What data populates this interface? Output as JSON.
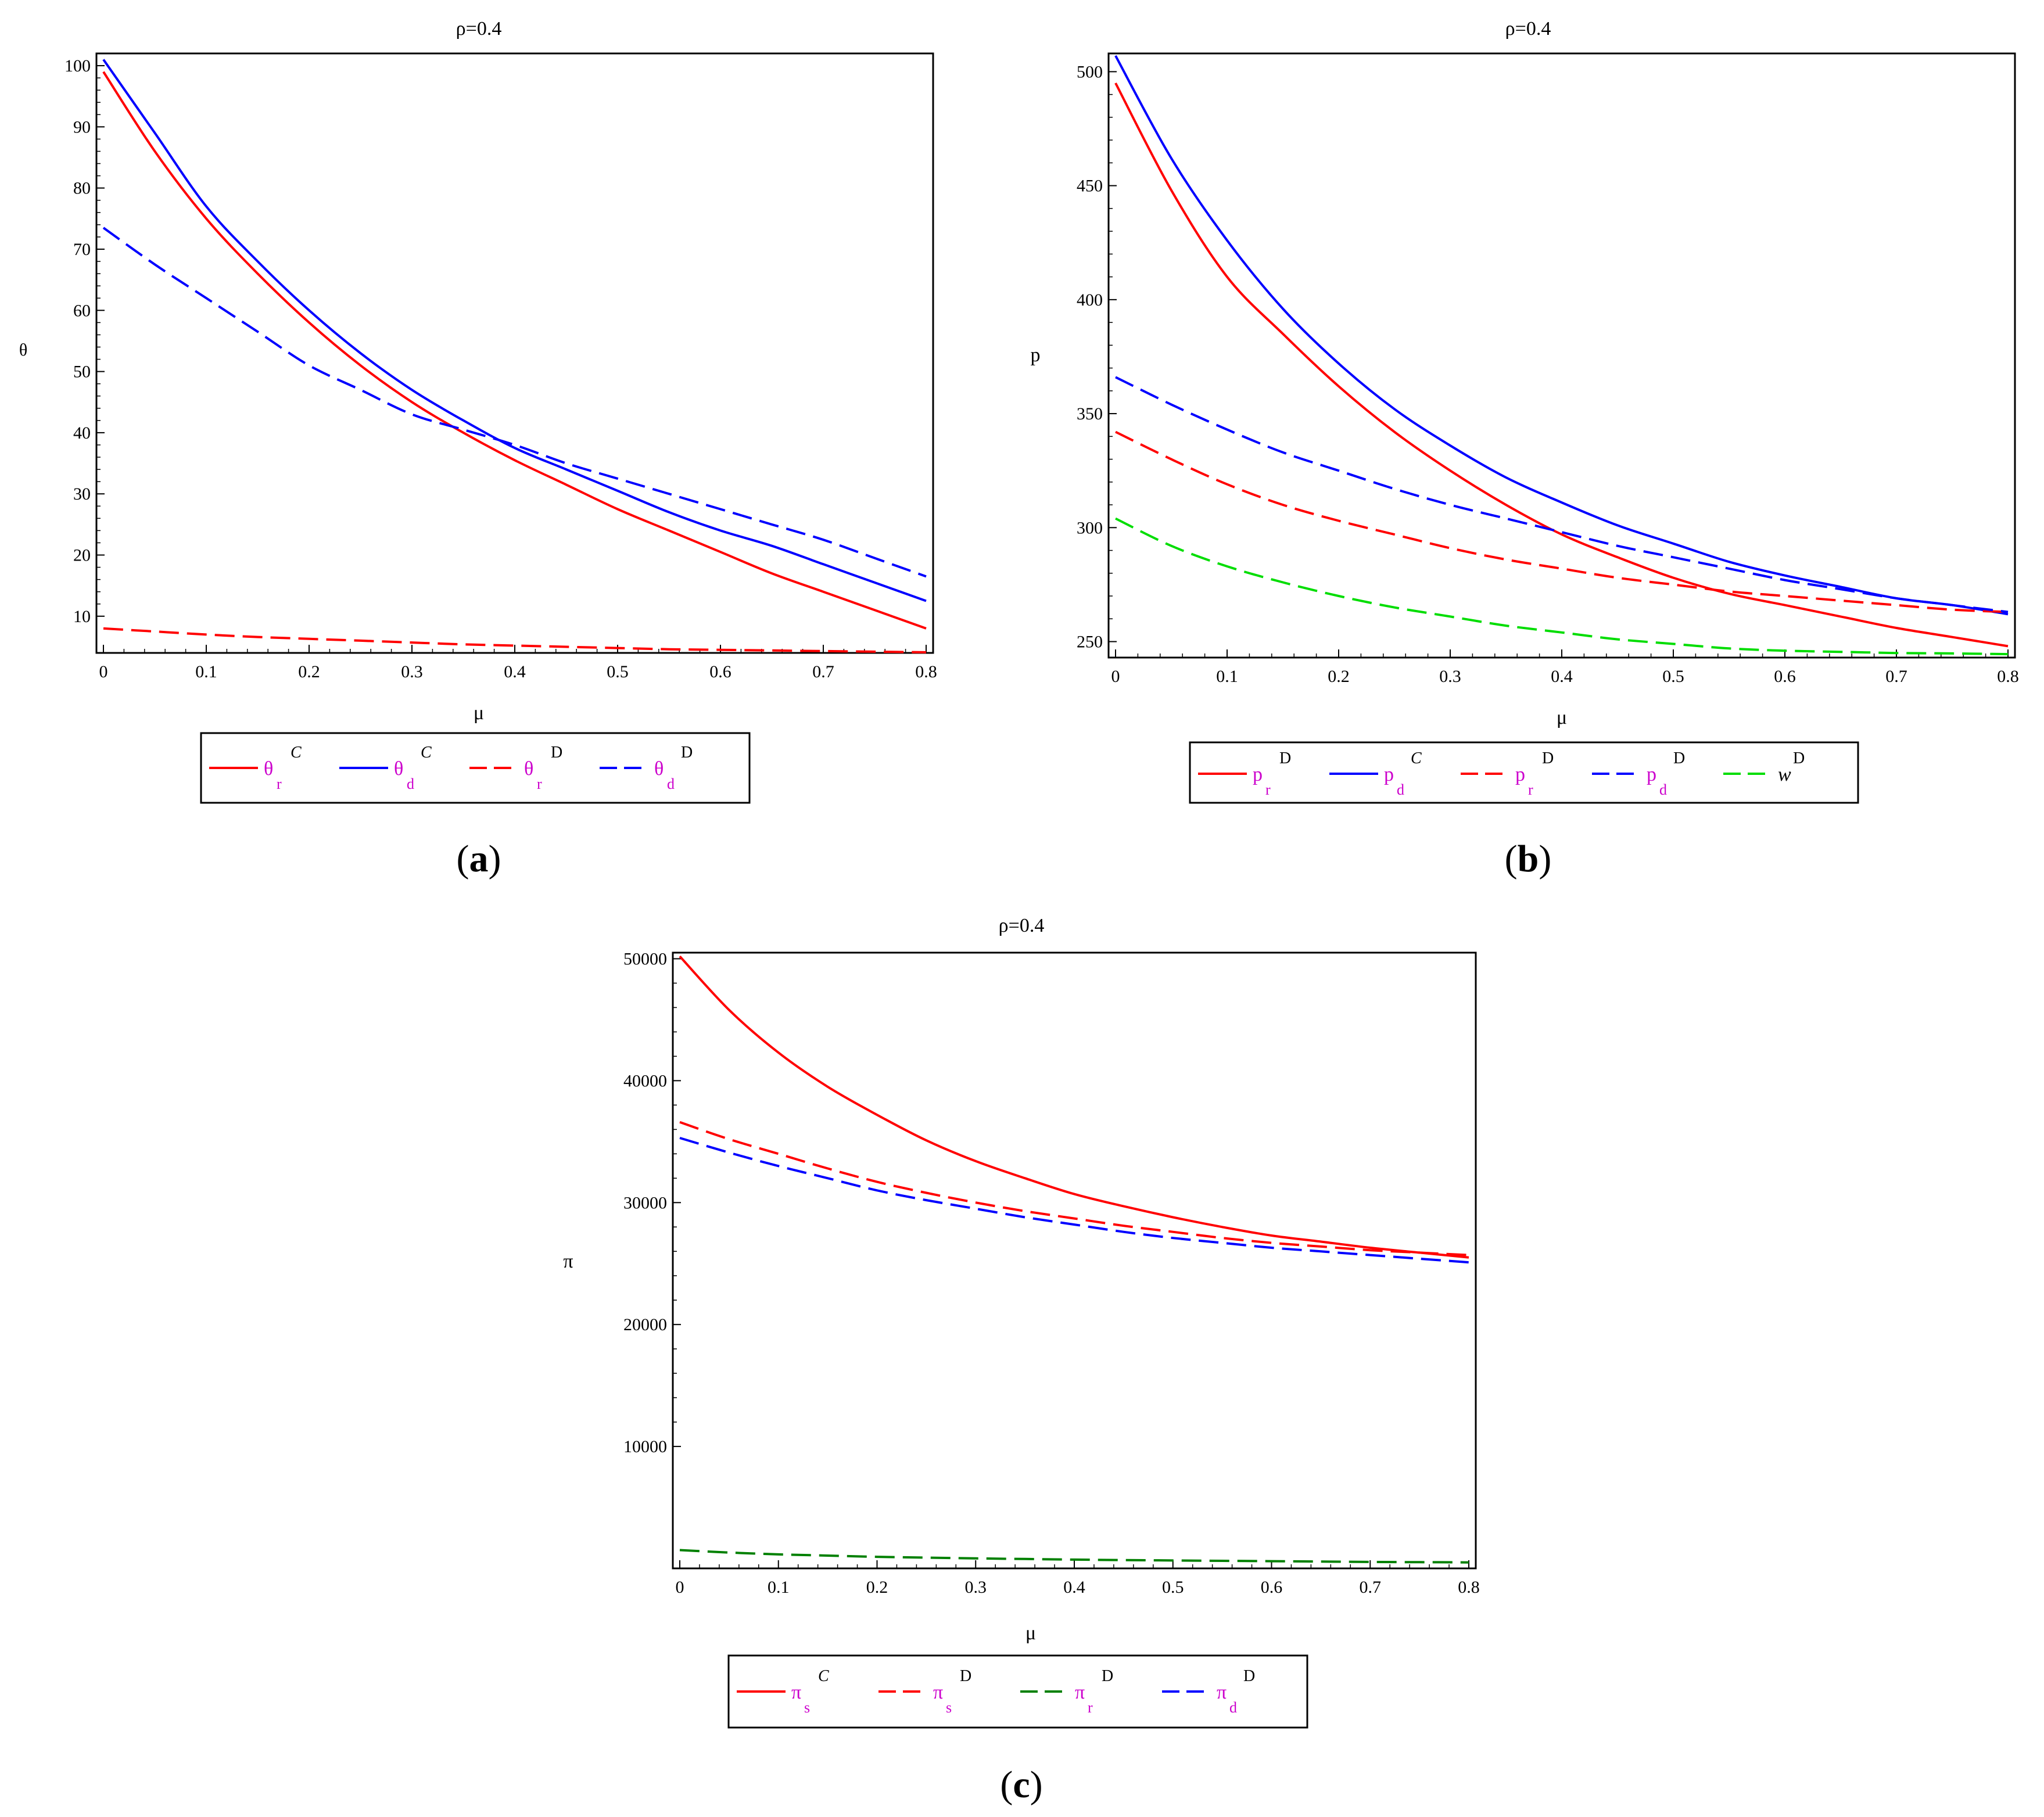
{
  "chart_data": [
    {
      "id": "a",
      "type": "line",
      "title": "ρ=0.4",
      "xlabel": "μ",
      "ylabel": "θ",
      "caption_letter": "a",
      "xlim": [
        0,
        0.8
      ],
      "ylim": [
        4,
        102
      ],
      "x_ticks": [
        0,
        0.1,
        0.2,
        0.3,
        0.4,
        0.5,
        0.6,
        0.7,
        0.8
      ],
      "x_tick_labels": [
        "0",
        "0.1",
        "0.2",
        "0.3",
        "0.4",
        "0.5",
        "0.6",
        "0.7",
        "0.8"
      ],
      "y_ticks": [
        10,
        20,
        30,
        40,
        50,
        60,
        70,
        80,
        90,
        100
      ],
      "y_tick_labels": [
        "10",
        "20",
        "30",
        "40",
        "50",
        "60",
        "70",
        "80",
        "90",
        "100"
      ],
      "x": [
        0,
        0.05,
        0.1,
        0.15,
        0.2,
        0.25,
        0.3,
        0.35,
        0.4,
        0.45,
        0.5,
        0.55,
        0.6,
        0.65,
        0.7,
        0.75,
        0.8
      ],
      "series": [
        {
          "base": "θ",
          "sub": "r",
          "sup": "C",
          "dash": false,
          "color": "#ff0000",
          "values": [
            99,
            86,
            75,
            66,
            58,
            51,
            45,
            40,
            35.5,
            31.5,
            27.5,
            24,
            20.5,
            17,
            14,
            11,
            8
          ]
        },
        {
          "base": "θ",
          "sub": "d",
          "sup": "C",
          "dash": false,
          "color": "#0000ff",
          "values": [
            101,
            89,
            77,
            68,
            60,
            53,
            47,
            42,
            37.5,
            34,
            30.5,
            27,
            24,
            21.5,
            18.5,
            15.5,
            12.5
          ]
        },
        {
          "base": "θ",
          "sub": "r",
          "sup": "D",
          "dash": true,
          "color": "#ff0000",
          "values": [
            8,
            7.5,
            7,
            6.6,
            6.3,
            6,
            5.7,
            5.4,
            5.2,
            5,
            4.8,
            4.6,
            4.5,
            4.4,
            4.3,
            4.2,
            4.1
          ]
        },
        {
          "base": "θ",
          "sub": "d",
          "sup": "D",
          "dash": true,
          "color": "#0000ff",
          "values": [
            73.5,
            67.5,
            62,
            56.5,
            51,
            47,
            43,
            40.5,
            38,
            35,
            32.5,
            30,
            27.5,
            25,
            22.5,
            19.5,
            16.5
          ]
        }
      ]
    },
    {
      "id": "b",
      "type": "line",
      "title": "ρ=0.4",
      "xlabel": "μ",
      "ylabel": "p",
      "caption_letter": "b",
      "xlim": [
        0,
        0.8
      ],
      "ylim": [
        243,
        508
      ],
      "x_ticks": [
        0,
        0.1,
        0.2,
        0.3,
        0.4,
        0.5,
        0.6,
        0.7,
        0.8
      ],
      "x_tick_labels": [
        "0",
        "0.1",
        "0.2",
        "0.3",
        "0.4",
        "0.5",
        "0.6",
        "0.7",
        "0.8"
      ],
      "y_ticks": [
        250,
        300,
        350,
        400,
        450,
        500
      ],
      "y_tick_labels": [
        "250",
        "300",
        "350",
        "400",
        "450",
        "500"
      ],
      "x": [
        0,
        0.05,
        0.1,
        0.15,
        0.2,
        0.25,
        0.3,
        0.35,
        0.4,
        0.45,
        0.5,
        0.55,
        0.6,
        0.65,
        0.7,
        0.75,
        0.8
      ],
      "series": [
        {
          "base": "p",
          "sub": "r",
          "sup": "D",
          "dash": false,
          "color": "#ff0000",
          "values": [
            495,
            448,
            410,
            385,
            362,
            342,
            325,
            310,
            297,
            287,
            278,
            271,
            266,
            261,
            256,
            252,
            248
          ]
        },
        {
          "base": "p",
          "sub": "d",
          "sup": "C",
          "dash": false,
          "color": "#0000ff",
          "values": [
            507,
            462,
            426,
            396,
            372,
            352,
            336,
            322,
            311,
            301,
            293,
            285,
            279,
            274,
            269,
            266,
            262
          ]
        },
        {
          "base": "p",
          "sub": "r",
          "sup": "D",
          "dash": true,
          "color": "#ff0000",
          "values": [
            342,
            330,
            319,
            310,
            303,
            297,
            291,
            286,
            282,
            278,
            275,
            272,
            270,
            268,
            266,
            264,
            263
          ]
        },
        {
          "base": "p",
          "sub": "d",
          "sup": "D",
          "dash": true,
          "color": "#0000ff",
          "values": [
            366,
            354,
            343,
            333,
            325,
            317,
            310,
            304,
            298,
            292,
            287,
            282,
            277,
            273,
            269,
            266,
            263
          ]
        },
        {
          "base": "w",
          "sub": "",
          "sup": "D",
          "dash": true,
          "color": "#00dd00",
          "values": [
            304,
            292,
            283,
            276,
            270,
            265,
            261,
            257,
            254,
            251,
            249,
            247,
            246,
            245.5,
            245,
            244.8,
            244.5
          ]
        }
      ]
    },
    {
      "id": "c",
      "type": "line",
      "title": "ρ=0.4",
      "xlabel": "μ",
      "ylabel": "π",
      "caption_letter": "c",
      "xlim": [
        0,
        0.8
      ],
      "ylim": [
        0,
        50500
      ],
      "x_ticks": [
        0,
        0.1,
        0.2,
        0.3,
        0.4,
        0.5,
        0.6,
        0.7,
        0.8
      ],
      "x_tick_labels": [
        "0",
        "0.1",
        "0.2",
        "0.3",
        "0.4",
        "0.5",
        "0.6",
        "0.7",
        "0.8"
      ],
      "y_ticks": [
        10000,
        20000,
        30000,
        40000,
        50000
      ],
      "y_tick_labels": [
        "10000",
        "20000",
        "30000",
        "40000",
        "50000"
      ],
      "x": [
        0,
        0.05,
        0.1,
        0.15,
        0.2,
        0.25,
        0.3,
        0.35,
        0.4,
        0.45,
        0.5,
        0.55,
        0.6,
        0.65,
        0.7,
        0.75,
        0.8
      ],
      "series": [
        {
          "base": "π",
          "sub": "s",
          "sup": "C",
          "dash": false,
          "color": "#ff0000",
          "values": [
            50200,
            45800,
            42300,
            39500,
            37200,
            35100,
            33400,
            32000,
            30700,
            29700,
            28800,
            28000,
            27300,
            26800,
            26300,
            25900,
            25500
          ]
        },
        {
          "base": "π",
          "sub": "s",
          "sup": "D",
          "dash": true,
          "color": "#ff0000",
          "values": [
            36600,
            35200,
            34000,
            32800,
            31700,
            30800,
            30000,
            29300,
            28700,
            28100,
            27600,
            27100,
            26700,
            26400,
            26100,
            25900,
            25700
          ]
        },
        {
          "base": "π",
          "sub": "r",
          "sup": "D",
          "dash": true,
          "color": "#008000",
          "values": [
            1500,
            1300,
            1150,
            1050,
            950,
            880,
            820,
            770,
            720,
            680,
            650,
            620,
            590,
            560,
            530,
            510,
            490
          ]
        },
        {
          "base": "π",
          "sub": "d",
          "sup": "D",
          "dash": true,
          "color": "#0000ff",
          "values": [
            35300,
            34100,
            33000,
            32000,
            31000,
            30200,
            29500,
            28800,
            28200,
            27600,
            27100,
            26700,
            26300,
            26000,
            25700,
            25400,
            25100
          ]
        }
      ]
    }
  ]
}
